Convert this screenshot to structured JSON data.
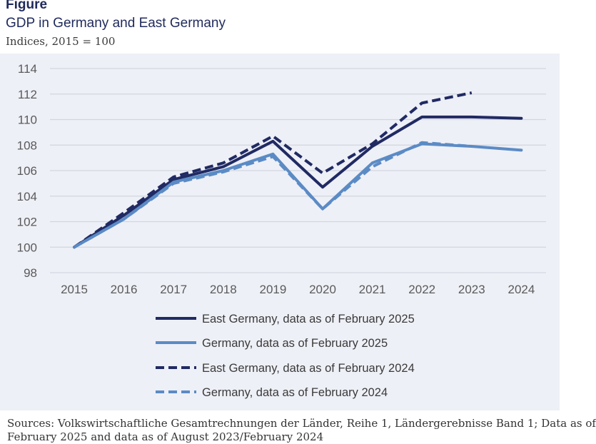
{
  "figure_label": "Figure",
  "title": "GDP in Germany and East Germany",
  "subtitle": "Indices, 2015 = 100",
  "source_line1": "Sources: Volkswirtschaftliche Gesamtrechnungen der Länder, Reihe 1, Ländergerebnisse Band 1; Data as of",
  "source_line2": "February 2025 and data as of August 2023/February 2024",
  "colors": {
    "dark_navy": "#202a63",
    "light_blue": "#5b8bc5",
    "panel_bg": "#eef0f7",
    "gridline": "#d3d6de"
  },
  "chart_data": {
    "type": "line",
    "title": "GDP in Germany and East Germany",
    "subtitle": "Indices, 2015 = 100",
    "xlabel": "",
    "ylabel": "",
    "ylim": [
      98,
      114
    ],
    "yticks": [
      98,
      100,
      102,
      104,
      106,
      108,
      110,
      112,
      114
    ],
    "x": [
      "2015",
      "2016",
      "2017",
      "2018",
      "2019",
      "2020",
      "2021",
      "2022",
      "2023",
      "2024"
    ],
    "grid": true,
    "legend_position": "bottom",
    "series": [
      {
        "name": "East Germany, data as of February 2025",
        "color": "#202a63",
        "dash": "solid",
        "values": [
          100,
          102.5,
          105.3,
          106.3,
          108.3,
          104.7,
          107.9,
          110.2,
          110.2,
          110.1
        ]
      },
      {
        "name": "Germany, data as of February 2025",
        "color": "#5b8bc5",
        "dash": "solid",
        "values": [
          100,
          102.2,
          105.1,
          106.0,
          107.3,
          103.0,
          106.6,
          108.1,
          107.9,
          107.6
        ]
      },
      {
        "name": "East Germany, data as of February 2024",
        "color": "#202a63",
        "dash": "dashed",
        "values": [
          100,
          102.7,
          105.5,
          106.6,
          108.7,
          105.8,
          108.1,
          111.3,
          112.1,
          null
        ]
      },
      {
        "name": "Germany, data as of February 2024",
        "color": "#5b8bc5",
        "dash": "dashed",
        "values": [
          100,
          102.2,
          105.0,
          105.9,
          107.1,
          103.0,
          106.3,
          108.2,
          107.9,
          null
        ]
      }
    ]
  }
}
